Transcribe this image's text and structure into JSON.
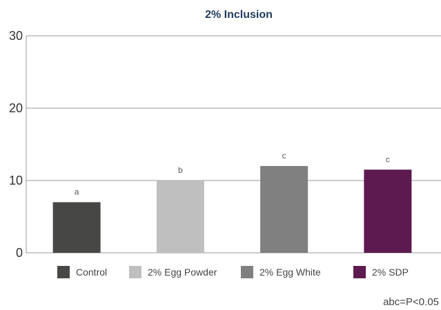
{
  "chart_data": {
    "type": "bar",
    "title": "2% Inclusion",
    "categories": [
      "Control",
      "2% Egg Powder",
      "2% Egg White",
      "2% SDP"
    ],
    "values": [
      7,
      10,
      12,
      11.5
    ],
    "data_labels": [
      "a",
      "b",
      "c",
      "c"
    ],
    "colors": [
      "#474745",
      "#bfbfbf",
      "#808080",
      "#5d1a50"
    ],
    "ylim": [
      0,
      30
    ],
    "yticks": [
      0,
      10,
      20,
      30
    ],
    "grid": true,
    "legend_position": "bottom",
    "annotation": "abc=P<0.05"
  }
}
